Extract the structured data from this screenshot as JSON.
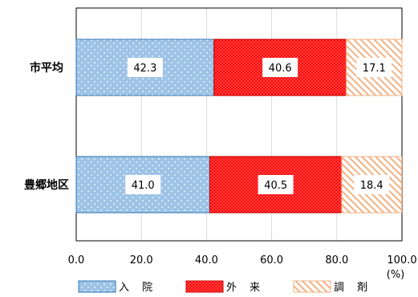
{
  "chart_data": {
    "type": "bar",
    "orientation": "horizontal",
    "stacked": true,
    "percent": true,
    "categories": [
      "市平均",
      "豊郷地区"
    ],
    "series": [
      {
        "name": "入 院",
        "values": [
          42.3,
          41.0
        ],
        "fill": "#9dc3e6",
        "stroke": "#2e75b6",
        "pattern": "dots"
      },
      {
        "name": "外 来",
        "values": [
          40.6,
          40.5
        ],
        "fill": "#ff0000",
        "stroke": "#c00000",
        "pattern": "dense-dots"
      },
      {
        "name": "調 剤",
        "values": [
          17.1,
          18.4
        ],
        "fill": "#ffffff",
        "stroke": "#f4b183",
        "pattern": "diagonal"
      }
    ],
    "data_labels": [
      [
        "42.3",
        "40.6",
        "17.1"
      ],
      [
        "41.0",
        "40.5",
        "18.4"
      ]
    ],
    "xlim": [
      0,
      100
    ],
    "xticks": [
      "0.0",
      "20.0",
      "40.0",
      "60.0",
      "80.0",
      "100.0"
    ],
    "unit_label": "(%)",
    "grid": true,
    "legend_position": "bottom"
  }
}
